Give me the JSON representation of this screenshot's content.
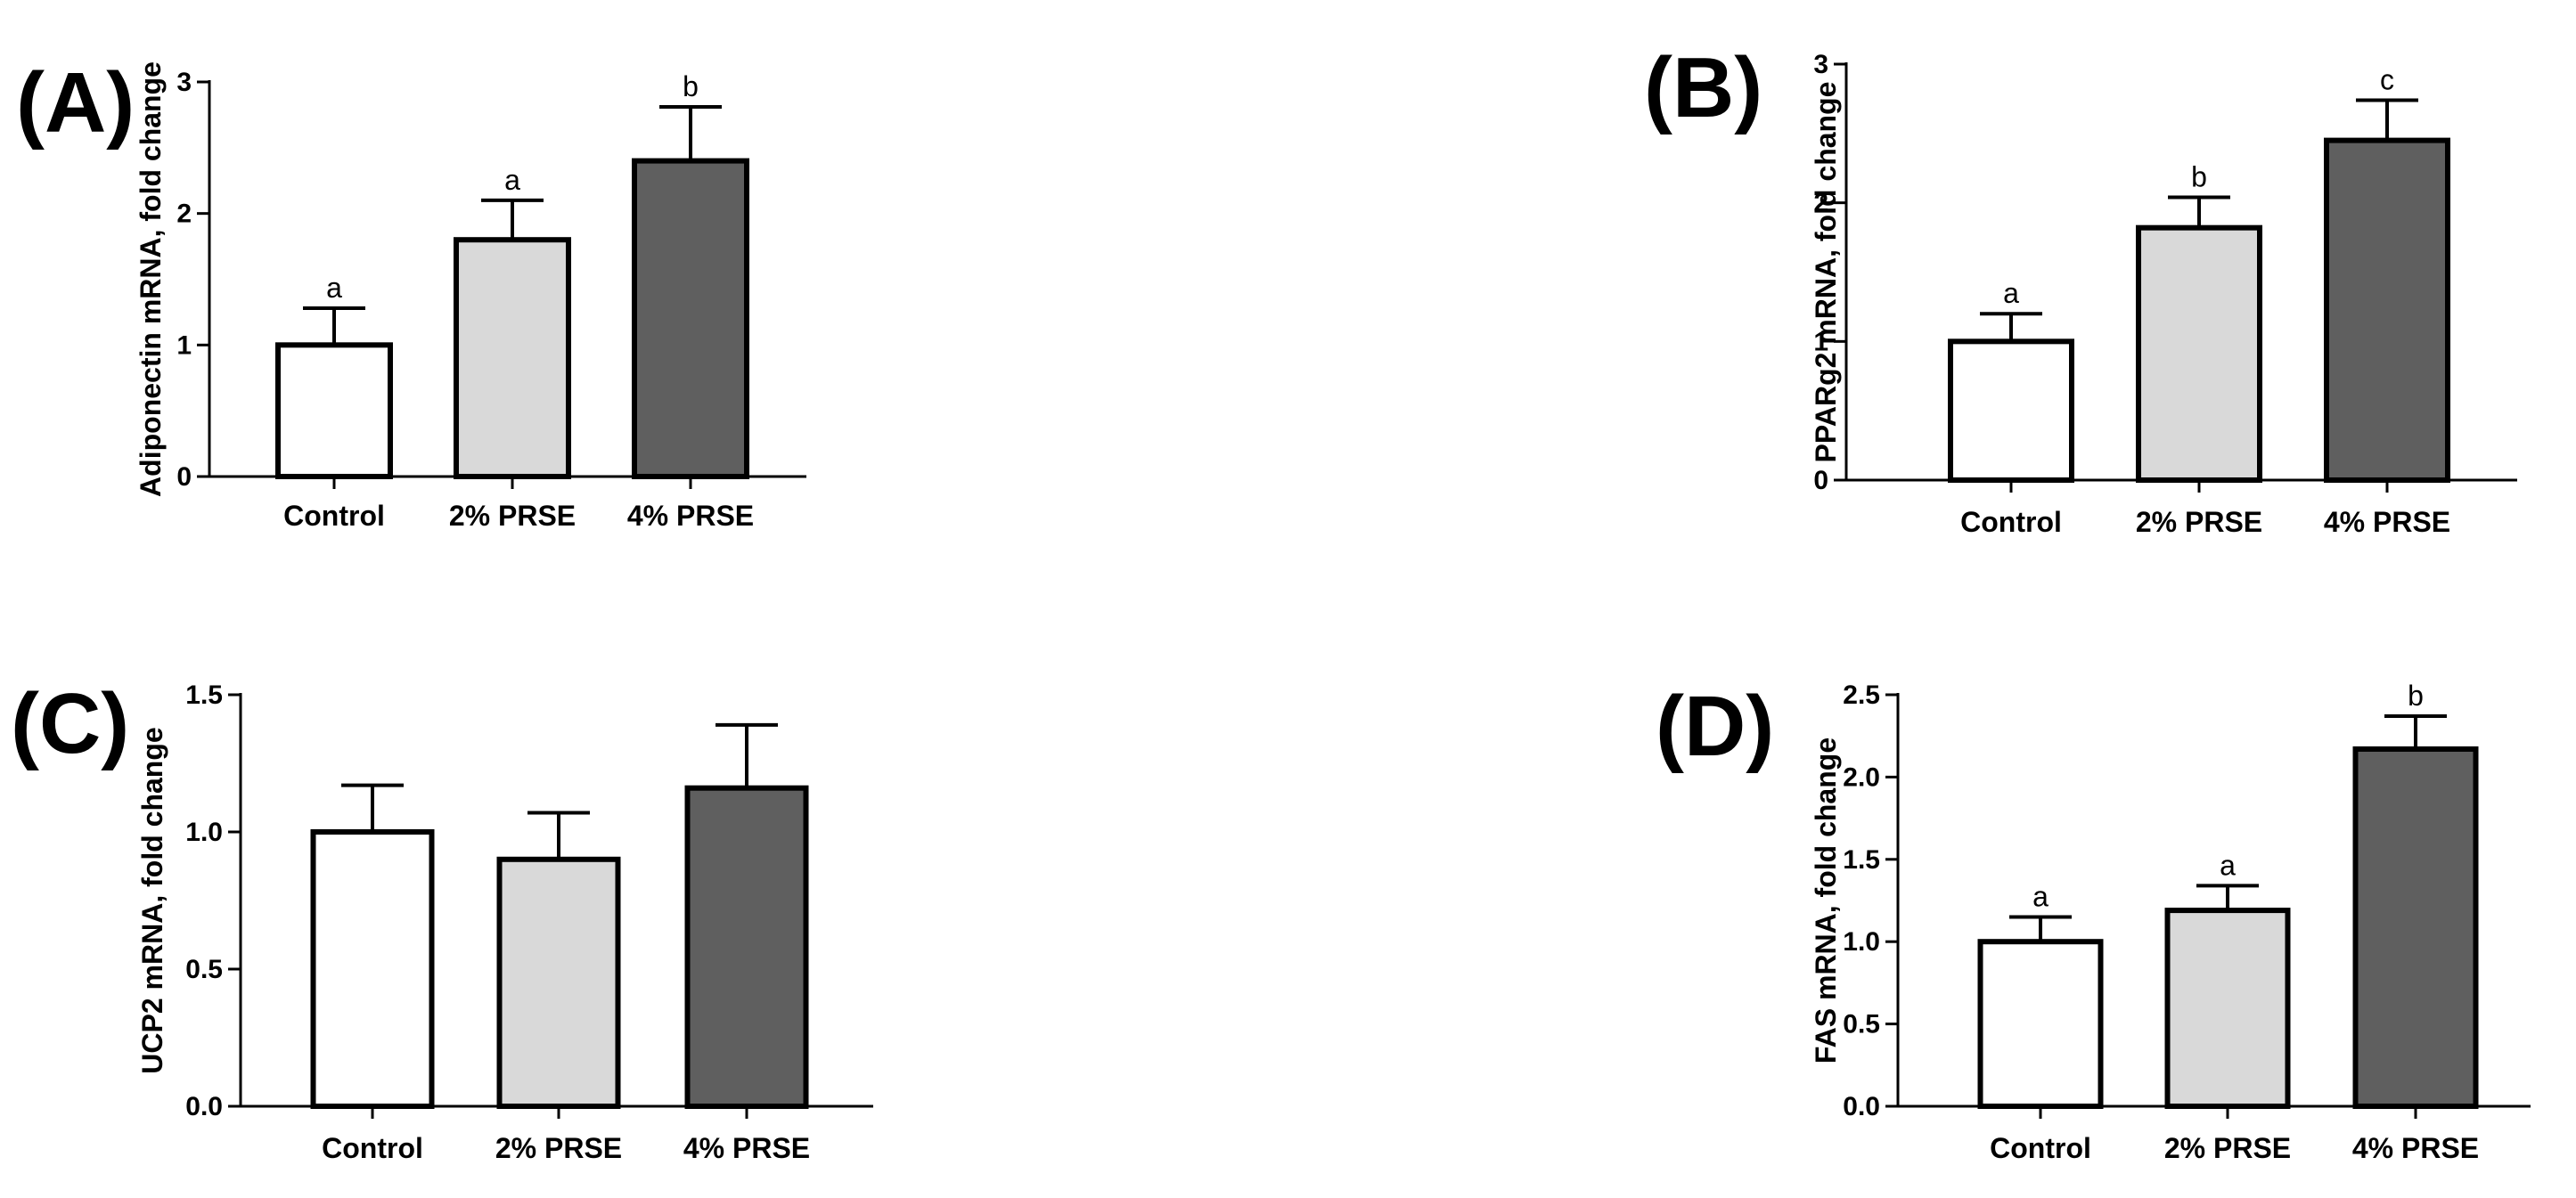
{
  "chart_data": [
    {
      "panel": "(A)",
      "type": "bar",
      "ylabel": "Adiponectin mRNA, fold change",
      "categories": [
        "Control",
        "2% PRSE",
        "4% PRSE"
      ],
      "values": [
        1.0,
        1.8,
        2.4
      ],
      "errors": [
        0.28,
        0.3,
        0.41
      ],
      "significance": [
        "a",
        "a",
        "b"
      ],
      "ylim": [
        0,
        3
      ],
      "yticks": [
        "0",
        "1",
        "2",
        "3"
      ],
      "bar_colors": [
        "#ffffff",
        "#d9d9d9",
        "#5f5f5f"
      ],
      "legend": "none"
    },
    {
      "panel": "(B)",
      "type": "bar",
      "ylabel": "PPARg2 mRNA, fold change",
      "categories": [
        "Control",
        "2% PRSE",
        "4% PRSE"
      ],
      "values": [
        1.0,
        1.82,
        2.45
      ],
      "errors": [
        0.2,
        0.22,
        0.29
      ],
      "significance": [
        "a",
        "b",
        "c"
      ],
      "ylim": [
        0,
        3
      ],
      "yticks": [
        "0",
        "1",
        "2",
        "3"
      ],
      "bar_colors": [
        "#ffffff",
        "#d9d9d9",
        "#5f5f5f"
      ],
      "legend": "none"
    },
    {
      "panel": "(C)",
      "type": "bar",
      "ylabel": "UCP2 mRNA, fold change",
      "categories": [
        "Control",
        "2% PRSE",
        "4% PRSE"
      ],
      "values": [
        1.0,
        0.9,
        1.16
      ],
      "errors": [
        0.17,
        0.17,
        0.23
      ],
      "significance": [
        "",
        "",
        ""
      ],
      "ylim": [
        0,
        1.5
      ],
      "yticks": [
        "0.0",
        "0.5",
        "1.0",
        "1.5"
      ],
      "bar_colors": [
        "#ffffff",
        "#d9d9d9",
        "#5f5f5f"
      ],
      "legend": "none"
    },
    {
      "panel": "(D)",
      "type": "bar",
      "ylabel": "FAS mRNA, fold change",
      "categories": [
        "Control",
        "2% PRSE",
        "4% PRSE"
      ],
      "values": [
        1.0,
        1.19,
        2.17
      ],
      "errors": [
        0.15,
        0.15,
        0.2
      ],
      "significance": [
        "a",
        "a",
        "b"
      ],
      "ylim": [
        0,
        2.5
      ],
      "yticks": [
        "0.0",
        "0.5",
        "1.0",
        "1.5",
        "2.0",
        "2.5"
      ],
      "bar_colors": [
        "#ffffff",
        "#d9d9d9",
        "#5f5f5f"
      ],
      "legend": "none"
    }
  ]
}
